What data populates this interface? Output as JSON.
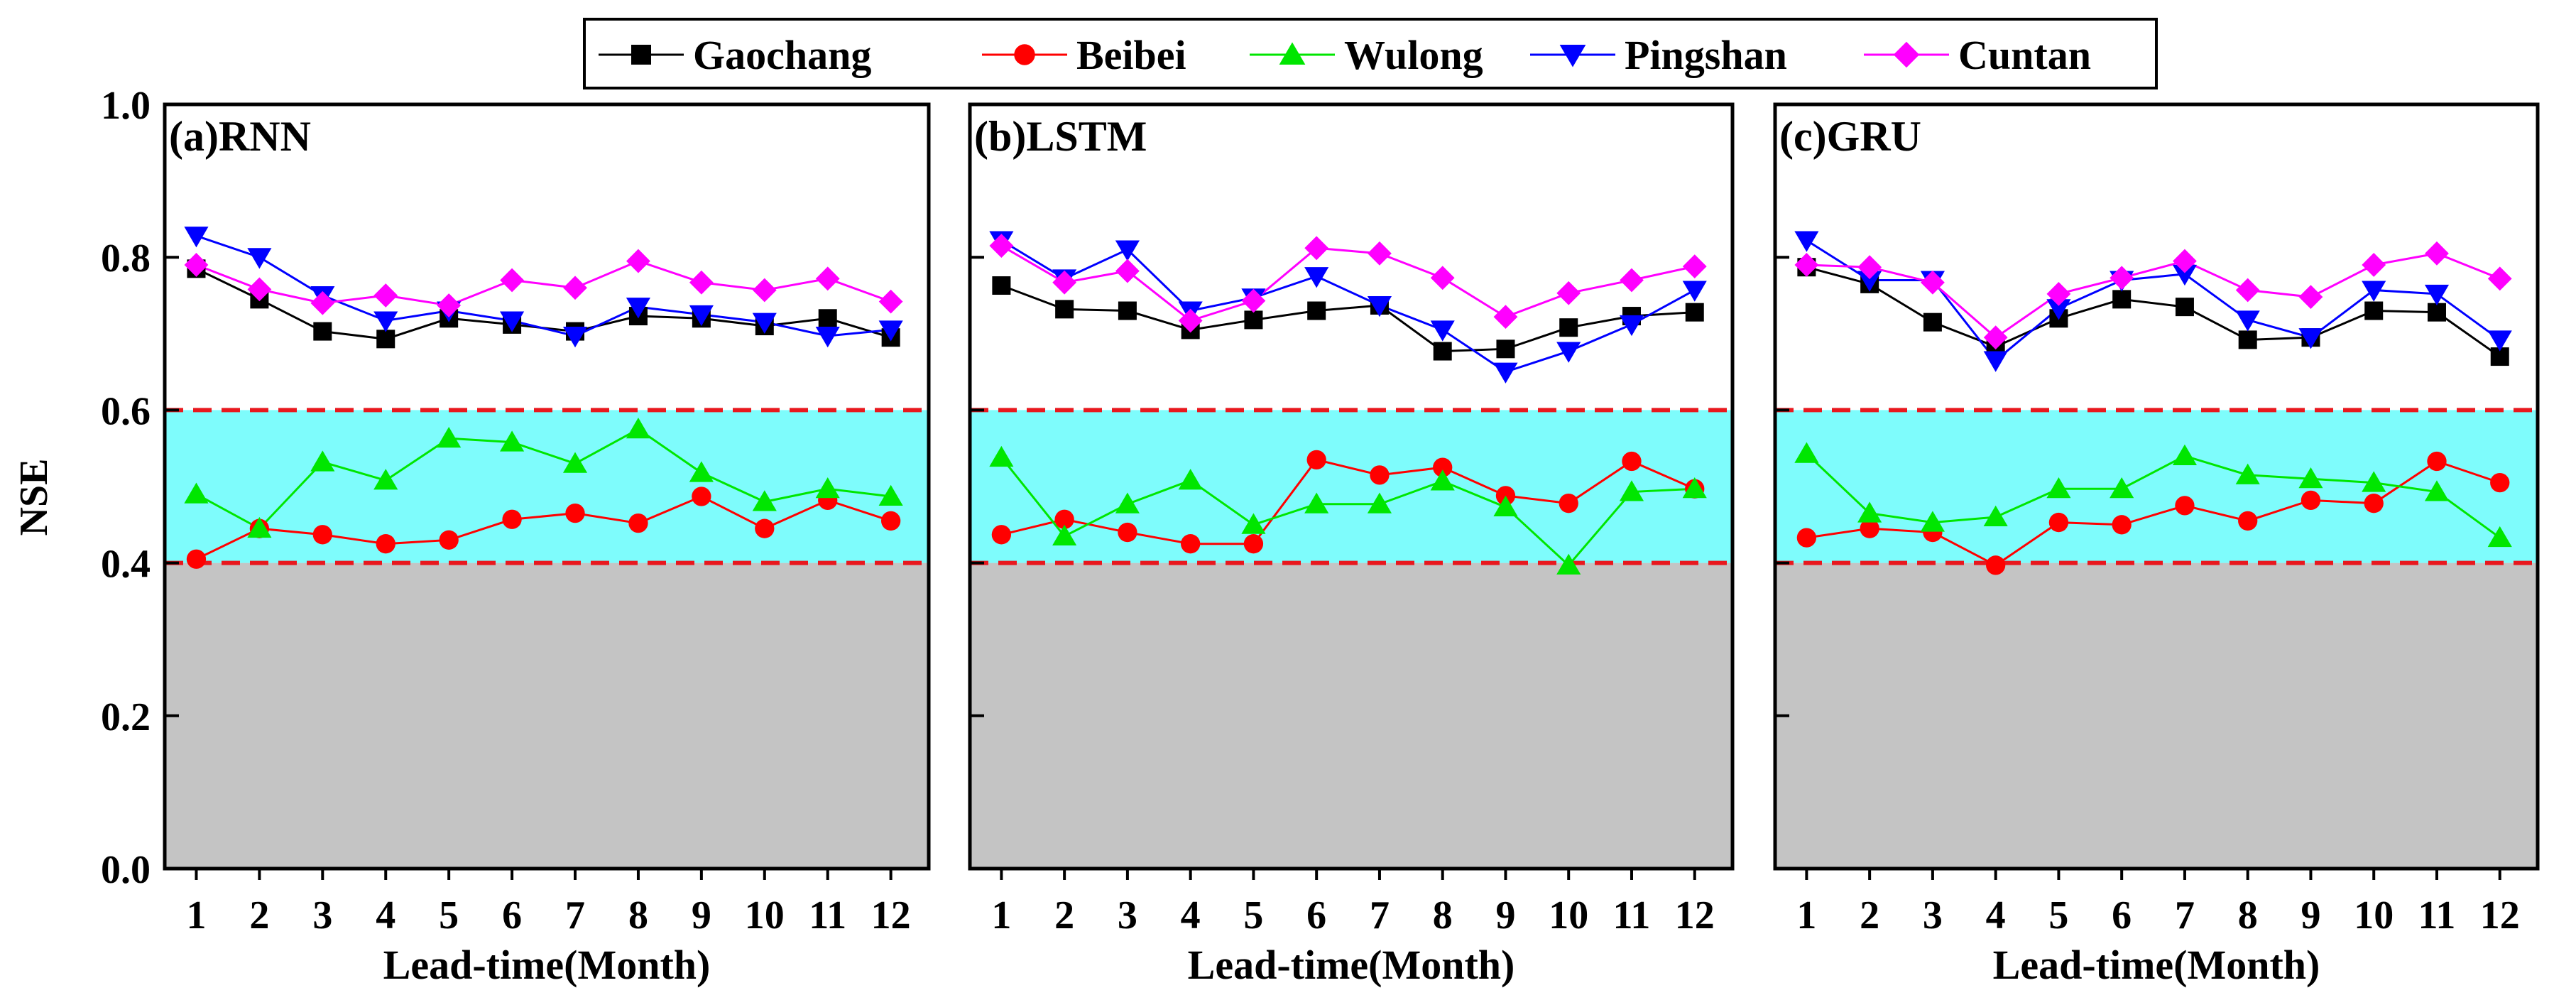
{
  "chart_data": {
    "type": "line",
    "ylabel": "NSE",
    "xlabel": "Lead-time(Month)",
    "ylim": [
      0.0,
      1.0
    ],
    "xlim": [
      0.5,
      12.6
    ],
    "yticks": [
      "0.0",
      "0.2",
      "0.4",
      "0.6",
      "0.8",
      "1.0"
    ],
    "ytick_values": [
      0.0,
      0.2,
      0.4,
      0.6,
      0.8,
      1.0
    ],
    "x": [
      1,
      2,
      3,
      4,
      5,
      6,
      7,
      8,
      9,
      10,
      11,
      12
    ],
    "xticks": [
      "1",
      "2",
      "3",
      "4",
      "5",
      "6",
      "7",
      "8",
      "9",
      "10",
      "11",
      "12"
    ],
    "bands": [
      {
        "from": 0.0,
        "to": 0.4,
        "color": "#c4c4c4"
      },
      {
        "from": 0.4,
        "to": 0.6,
        "color": "#7efcfc"
      }
    ],
    "reference_lines": [
      {
        "y": 0.4,
        "color": "#e8181e",
        "style": "dashed"
      },
      {
        "y": 0.6,
        "color": "#e8181e",
        "style": "dashed"
      }
    ],
    "legend": {
      "placement": "top-center",
      "entries": [
        {
          "name": "Gaochang",
          "color": "#000000",
          "marker": "square"
        },
        {
          "name": "Beibei",
          "color": "#ff0000",
          "marker": "circle"
        },
        {
          "name": "Wulong",
          "color": "#00e600",
          "marker": "triangle-up"
        },
        {
          "name": "Pingshan",
          "color": "#0000ff",
          "marker": "triangle-down"
        },
        {
          "name": "Cuntan",
          "color": "#ff00ff",
          "marker": "diamond"
        }
      ]
    },
    "panels": [
      {
        "title": "(a)RNN",
        "series": [
          {
            "name": "Gaochang",
            "values": [
              0.785,
              0.745,
              0.703,
              0.693,
              0.72,
              0.712,
              0.703,
              0.723,
              0.72,
              0.71,
              0.72,
              0.695
            ]
          },
          {
            "name": "Beibei",
            "values": [
              0.405,
              0.445,
              0.437,
              0.425,
              0.43,
              0.457,
              0.465,
              0.452,
              0.487,
              0.445,
              0.482,
              0.455
            ]
          },
          {
            "name": "Wulong",
            "values": [
              0.49,
              0.445,
              0.532,
              0.508,
              0.563,
              0.558,
              0.53,
              0.575,
              0.518,
              0.48,
              0.497,
              0.487
            ]
          },
          {
            "name": "Pingshan",
            "values": [
              0.828,
              0.8,
              0.75,
              0.717,
              0.73,
              0.717,
              0.697,
              0.735,
              0.725,
              0.715,
              0.697,
              0.705
            ]
          },
          {
            "name": "Cuntan",
            "values": [
              0.79,
              0.758,
              0.74,
              0.75,
              0.737,
              0.77,
              0.76,
              0.795,
              0.767,
              0.757,
              0.772,
              0.742
            ]
          }
        ]
      },
      {
        "title": "(b)LSTM",
        "series": [
          {
            "name": "Gaochang",
            "values": [
              0.763,
              0.732,
              0.73,
              0.705,
              0.718,
              0.73,
              0.737,
              0.677,
              0.68,
              0.708,
              0.723,
              0.728
            ]
          },
          {
            "name": "Beibei",
            "values": [
              0.437,
              0.457,
              0.44,
              0.425,
              0.425,
              0.535,
              0.515,
              0.525,
              0.488,
              0.478,
              0.533,
              0.497
            ]
          },
          {
            "name": "Wulong",
            "values": [
              0.538,
              0.435,
              0.477,
              0.508,
              0.45,
              0.477,
              0.477,
              0.507,
              0.473,
              0.397,
              0.493,
              0.497
            ]
          },
          {
            "name": "Pingshan",
            "values": [
              0.822,
              0.772,
              0.81,
              0.73,
              0.747,
              0.775,
              0.737,
              0.705,
              0.65,
              0.677,
              0.712,
              0.757
            ]
          },
          {
            "name": "Cuntan",
            "values": [
              0.815,
              0.767,
              0.782,
              0.717,
              0.743,
              0.812,
              0.805,
              0.773,
              0.722,
              0.753,
              0.77,
              0.788
            ]
          }
        ]
      },
      {
        "title": "(c)GRU",
        "series": [
          {
            "name": "Gaochang",
            "values": [
              0.787,
              0.765,
              0.715,
              0.683,
              0.72,
              0.745,
              0.735,
              0.692,
              0.695,
              0.73,
              0.728,
              0.67
            ]
          },
          {
            "name": "Beibei",
            "values": [
              0.433,
              0.445,
              0.44,
              0.397,
              0.453,
              0.45,
              0.475,
              0.455,
              0.482,
              0.478,
              0.533,
              0.505
            ]
          },
          {
            "name": "Wulong",
            "values": [
              0.543,
              0.465,
              0.453,
              0.46,
              0.497,
              0.497,
              0.54,
              0.515,
              0.51,
              0.505,
              0.493,
              0.433
            ]
          },
          {
            "name": "Pingshan",
            "values": [
              0.822,
              0.77,
              0.77,
              0.665,
              0.733,
              0.77,
              0.778,
              0.718,
              0.695,
              0.757,
              0.752,
              0.692
            ]
          },
          {
            "name": "Cuntan",
            "values": [
              0.79,
              0.787,
              0.767,
              0.695,
              0.752,
              0.773,
              0.795,
              0.757,
              0.748,
              0.79,
              0.805,
              0.772
            ]
          }
        ]
      }
    ]
  }
}
